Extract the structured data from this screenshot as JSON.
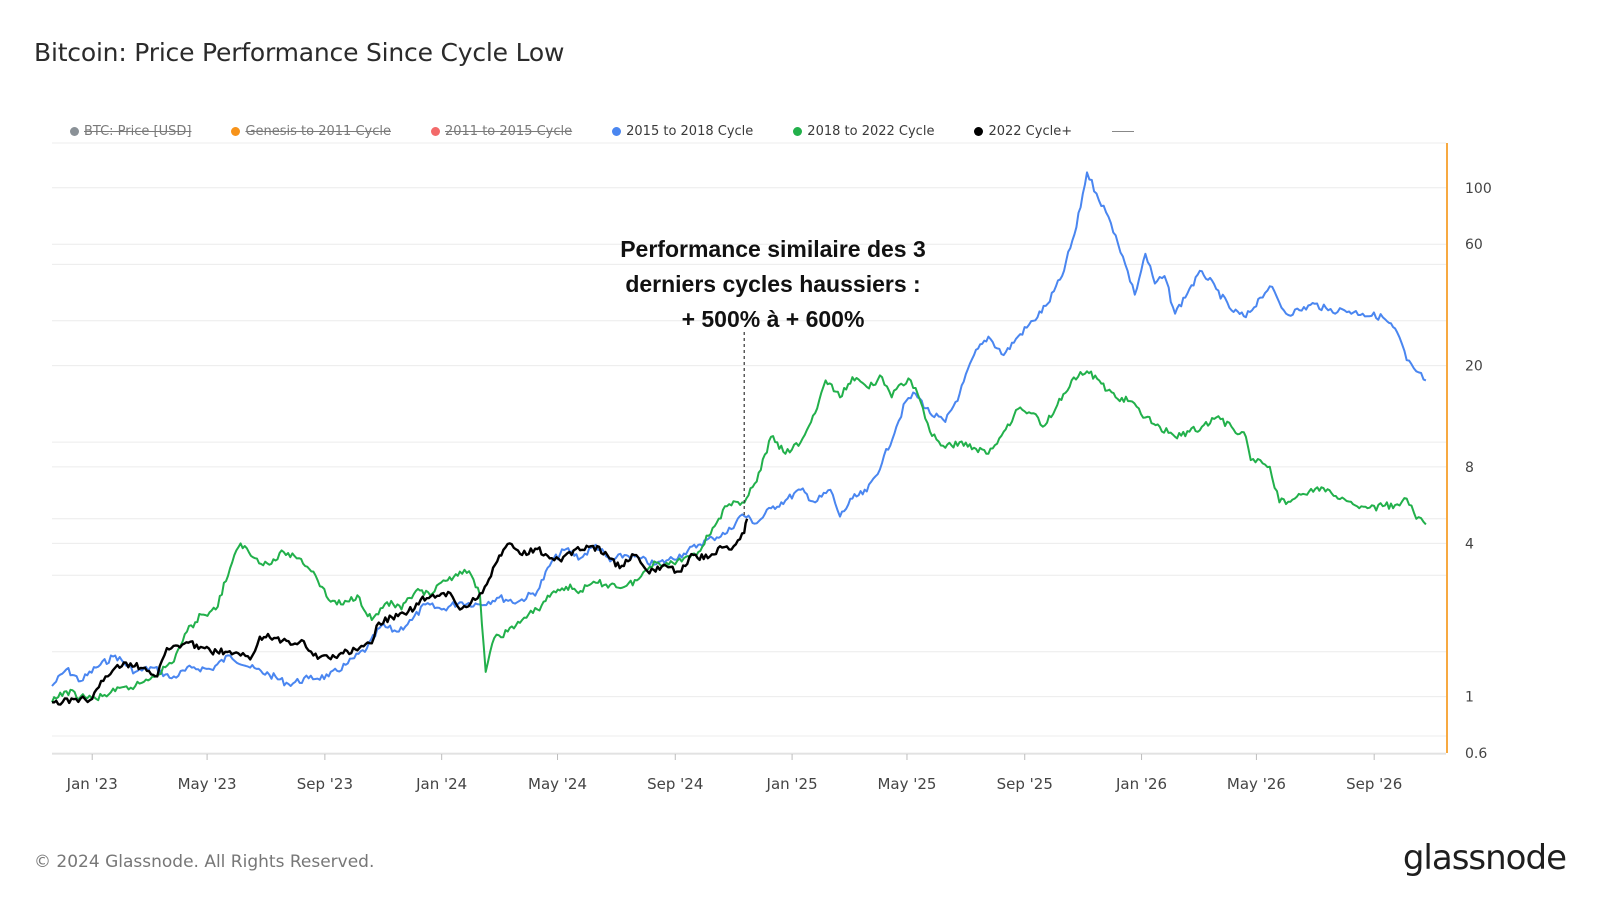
{
  "title": "Bitcoin: Price Performance Since Cycle Low",
  "footer": "© 2024 Glassnode. All Rights Reserved.",
  "brand": "glassnode",
  "legend": [
    {
      "label": "BTC: Price [USD]",
      "color": "#8a9197",
      "active": false
    },
    {
      "label": "Genesis to 2011 Cycle",
      "color": "#f7931a",
      "active": false
    },
    {
      "label": "2011 to 2015 Cycle",
      "color": "#f36a6a",
      "active": false
    },
    {
      "label": "2015 to 2018 Cycle",
      "color": "#4a86f0",
      "active": true
    },
    {
      "label": "2018 to 2022 Cycle",
      "color": "#22b04b",
      "active": true
    },
    {
      "label": "2022 Cycle+",
      "color": "#000000",
      "active": true
    }
  ],
  "annotation": {
    "lines": [
      "Performance similaire des 3",
      "derniers cycles haussiers :",
      "+ 500% à + 600%"
    ],
    "pointer_date": "Nov '24"
  },
  "chart_data": {
    "type": "line",
    "y_scale": "log",
    "y_ticks": [
      {
        "value": 0.6,
        "label": "0.6"
      },
      {
        "value": 1,
        "label": "1"
      },
      {
        "value": 4,
        "label": "4"
      },
      {
        "value": 8,
        "label": "8"
      },
      {
        "value": 20,
        "label": "20"
      },
      {
        "value": 60,
        "label": "60"
      },
      {
        "value": 100,
        "label": "100"
      }
    ],
    "y_gridlines": [
      0.6,
      0.7,
      1,
      1.5,
      3,
      4,
      5,
      8,
      10,
      20,
      30,
      50,
      60,
      100,
      150
    ],
    "ylim": [
      0.6,
      150
    ],
    "x_range": [
      "Nov 20 '22",
      "Nov 15 '26"
    ],
    "x_ticks": [
      "Jan '23",
      "May '23",
      "Sep '23",
      "Jan '24",
      "May '24",
      "Sep '24",
      "Jan '25",
      "May '25",
      "Sep '25",
      "Jan '26",
      "May '26",
      "Sep '26"
    ],
    "grid": "horizontal",
    "legend_position": "top-left",
    "series": [
      {
        "name": "2015 to 2018 Cycle",
        "color": "#4a86f0",
        "points": [
          [
            "Nov 20 '22",
            1.1
          ],
          [
            "Dec 05 '22",
            1.28
          ],
          [
            "Dec 20 '22",
            1.15
          ],
          [
            "Jan 05 '23",
            1.3
          ],
          [
            "Jan 25 '23",
            1.45
          ],
          [
            "Feb 15 '23",
            1.25
          ],
          [
            "Mar 05 '23",
            1.3
          ],
          [
            "Mar 25 '23",
            1.18
          ],
          [
            "Apr 15 '23",
            1.3
          ],
          [
            "May 05 '23",
            1.28
          ],
          [
            "May 25 '23",
            1.45
          ],
          [
            "Jun 15 '23",
            1.3
          ],
          [
            "Jul 05 '23",
            1.22
          ],
          [
            "Jul 25 '23",
            1.12
          ],
          [
            "Aug 15 '23",
            1.18
          ],
          [
            "Sep 05 '23",
            1.2
          ],
          [
            "Sep 25 '23",
            1.35
          ],
          [
            "Oct 15 '23",
            1.55
          ],
          [
            "Oct 30 '23",
            1.9
          ],
          [
            "Nov 15 '23",
            1.8
          ],
          [
            "Dec 01 '23",
            2.0
          ],
          [
            "Dec 15 '23",
            2.3
          ],
          [
            "Jan 01 '24",
            2.2
          ],
          [
            "Jan 20 '24",
            2.35
          ],
          [
            "Feb 10 '24",
            2.3
          ],
          [
            "Mar 01 '24",
            2.45
          ],
          [
            "Mar 20 '24",
            2.35
          ],
          [
            "Apr 10 '24",
            2.6
          ],
          [
            "Apr 25 '24",
            3.4
          ],
          [
            "May 10 '24",
            3.8
          ],
          [
            "May 25 '24",
            3.5
          ],
          [
            "Jun 10 '24",
            3.95
          ],
          [
            "Jun 25 '24",
            3.4
          ],
          [
            "Jul 10 '24",
            3.6
          ],
          [
            "Jul 25 '24",
            3.5
          ],
          [
            "Aug 10 '24",
            3.3
          ],
          [
            "Aug 25 '24",
            3.45
          ],
          [
            "Sep 10 '24",
            3.65
          ],
          [
            "Sep 25 '24",
            3.95
          ],
          [
            "Oct 10 '24",
            4.2
          ],
          [
            "Oct 25 '24",
            4.4
          ],
          [
            "Nov 10 '24",
            5.2
          ],
          [
            "Nov 25 '24",
            4.8
          ],
          [
            "Dec 10 '24",
            5.5
          ],
          [
            "Dec 25 '24",
            5.9
          ],
          [
            "Jan 10 '25",
            6.5
          ],
          [
            "Jan 25 '25",
            5.8
          ],
          [
            "Feb 10 '25",
            6.5
          ],
          [
            "Feb 20 '25",
            5.1
          ],
          [
            "Mar 05 '25",
            6.0
          ],
          [
            "Mar 20 '25",
            6.4
          ],
          [
            "Apr 05 '25",
            8.3
          ],
          [
            "Apr 20 '25",
            11.5
          ],
          [
            "Apr 30 '25",
            14.5
          ],
          [
            "May 10 '25",
            15.5
          ],
          [
            "May 25 '25",
            13.0
          ],
          [
            "Jun 10 '25",
            12.0
          ],
          [
            "Jun 25 '25",
            15.5
          ],
          [
            "Jul 10 '25",
            22.0
          ],
          [
            "Jul 25 '25",
            26.0
          ],
          [
            "Aug 10 '25",
            22.0
          ],
          [
            "Aug 25 '25",
            26.0
          ],
          [
            "Sep 10 '25",
            30.0
          ],
          [
            "Sep 25 '25",
            35.0
          ],
          [
            "Oct 10 '25",
            45.0
          ],
          [
            "Oct 25 '25",
            70.0
          ],
          [
            "Nov 05 '25",
            115.0
          ],
          [
            "Nov 15 '25",
            95.0
          ],
          [
            "Nov 25 '25",
            80.0
          ],
          [
            "Dec 05 '25",
            65.0
          ],
          [
            "Dec 15 '25",
            50.0
          ],
          [
            "Dec 25 '25",
            38.0
          ],
          [
            "Jan 05 '26",
            55.0
          ],
          [
            "Jan 15 '26",
            42.0
          ],
          [
            "Jan 25 '26",
            45.0
          ],
          [
            "Feb 05 '26",
            32.0
          ],
          [
            "Feb 20 '26",
            40.0
          ],
          [
            "Mar 05 '26",
            47.0
          ],
          [
            "Mar 20 '26",
            40.0
          ],
          [
            "Apr 05 '26",
            33.0
          ],
          [
            "Apr 20 '26",
            31.0
          ],
          [
            "May 05 '26",
            37.0
          ],
          [
            "May 15 '26",
            41.0
          ],
          [
            "Jun 01 '26",
            32.0
          ],
          [
            "Jun 15 '26",
            33.0
          ],
          [
            "Jul 01 '26",
            35.0
          ],
          [
            "Jul 15 '26",
            33.0
          ],
          [
            "Aug 01 '26",
            33.0
          ],
          [
            "Aug 20 '26",
            32.0
          ],
          [
            "Sep 10 '26",
            31.0
          ],
          [
            "Sep 25 '26",
            27.0
          ],
          [
            "Oct 05 '26",
            21.0
          ],
          [
            "Oct 15 '26",
            19.0
          ],
          [
            "Oct 25 '26",
            17.5
          ]
        ]
      },
      {
        "name": "2018 to 2022 Cycle",
        "color": "#22b04b",
        "points": [
          [
            "Nov 20 '22",
            0.95
          ],
          [
            "Dec 05 '22",
            1.05
          ],
          [
            "Dec 20 '22",
            1.0
          ],
          [
            "Jan 05 '23",
            0.98
          ],
          [
            "Jan 25 '23",
            1.05
          ],
          [
            "Feb 15 '23",
            1.1
          ],
          [
            "Mar 05 '23",
            1.2
          ],
          [
            "Mar 25 '23",
            1.35
          ],
          [
            "Apr 10 '23",
            1.8
          ],
          [
            "Apr 25 '23",
            2.1
          ],
          [
            "May 10 '23",
            2.2
          ],
          [
            "May 25 '23",
            3.2
          ],
          [
            "Jun 05 '23",
            4.0
          ],
          [
            "Jun 20 '23",
            3.5
          ],
          [
            "Jul 05 '23",
            3.3
          ],
          [
            "Jul 20 '23",
            3.7
          ],
          [
            "Aug 05 '23",
            3.5
          ],
          [
            "Aug 20 '23",
            3.1
          ],
          [
            "Sep 05 '23",
            2.4
          ],
          [
            "Sep 20 '23",
            2.3
          ],
          [
            "Oct 05 '23",
            2.5
          ],
          [
            "Oct 20 '23",
            2.0
          ],
          [
            "Nov 05 '23",
            2.35
          ],
          [
            "Nov 20 '23",
            2.2
          ],
          [
            "Dec 05 '23",
            2.6
          ],
          [
            "Dec 20 '23",
            2.5
          ],
          [
            "Jan 05 '24",
            2.85
          ],
          [
            "Jan 20 '24",
            3.1
          ],
          [
            "Feb 01 '24",
            3.0
          ],
          [
            "Feb 10 '24",
            2.5
          ],
          [
            "Feb 16 '24",
            1.25
          ],
          [
            "Feb 25 '24",
            1.7
          ],
          [
            "Mar 10 '24",
            1.8
          ],
          [
            "Mar 25 '24",
            2.0
          ],
          [
            "Apr 10 '24",
            2.2
          ],
          [
            "Apr 25 '24",
            2.55
          ],
          [
            "May 10 '24",
            2.7
          ],
          [
            "May 25 '24",
            2.6
          ],
          [
            "Jun 10 '24",
            2.8
          ],
          [
            "Jun 25 '24",
            2.75
          ],
          [
            "Jul 10 '24",
            2.7
          ],
          [
            "Jul 25 '24",
            2.9
          ],
          [
            "Aug 10 '24",
            3.4
          ],
          [
            "Aug 25 '24",
            3.3
          ],
          [
            "Sep 10 '24",
            3.5
          ],
          [
            "Sep 25 '24",
            3.7
          ],
          [
            "Oct 10 '24",
            4.6
          ],
          [
            "Oct 25 '24",
            5.6
          ],
          [
            "Nov 10 '24",
            5.8
          ],
          [
            "Nov 25 '24",
            7.0
          ],
          [
            "Dec 10 '24",
            10.5
          ],
          [
            "Dec 25 '24",
            9.0
          ],
          [
            "Jan 10 '25",
            10.0
          ],
          [
            "Jan 25 '25",
            13.0
          ],
          [
            "Feb 05 '25",
            17.5
          ],
          [
            "Feb 20 '25",
            15.0
          ],
          [
            "Mar 05 '25",
            18.0
          ],
          [
            "Mar 20 '25",
            16.5
          ],
          [
            "Apr 05 '25",
            18.0
          ],
          [
            "Apr 15 '25",
            15.0
          ],
          [
            "Apr 25 '25",
            17.0
          ],
          [
            "May 05 '25",
            17.5
          ],
          [
            "May 15 '25",
            14.5
          ],
          [
            "May 25 '25",
            11.0
          ],
          [
            "Jun 10 '25",
            9.5
          ],
          [
            "Jun 25 '25",
            10.0
          ],
          [
            "Jul 10 '25",
            9.5
          ],
          [
            "Jul 25 '25",
            9.0
          ],
          [
            "Aug 10 '25",
            11.0
          ],
          [
            "Aug 25 '25",
            13.5
          ],
          [
            "Sep 10 '25",
            13.0
          ],
          [
            "Sep 20 '25",
            11.5
          ],
          [
            "Oct 05 '25",
            14.0
          ],
          [
            "Oct 20 '25",
            17.5
          ],
          [
            "Nov 05 '25",
            19.0
          ],
          [
            "Nov 20 '25",
            17.0
          ],
          [
            "Dec 05 '25",
            15.0
          ],
          [
            "Dec 20 '25",
            14.5
          ],
          [
            "Jan 05 '26",
            12.5
          ],
          [
            "Jan 20 '26",
            11.5
          ],
          [
            "Feb 05 '26",
            10.5
          ],
          [
            "Feb 20 '26",
            11.0
          ],
          [
            "Mar 05 '26",
            11.5
          ],
          [
            "Mar 20 '26",
            12.5
          ],
          [
            "Apr 05 '26",
            11.5
          ],
          [
            "Apr 20 '26",
            10.5
          ],
          [
            "Apr 25 '26",
            8.5
          ],
          [
            "May 05 '26",
            8.5
          ],
          [
            "May 15 '26",
            8.0
          ],
          [
            "May 25 '26",
            5.8
          ],
          [
            "Jun 10 '26",
            6.0
          ],
          [
            "Jun 25 '26",
            6.4
          ],
          [
            "Jul 10 '26",
            6.6
          ],
          [
            "Jul 25 '26",
            6.0
          ],
          [
            "Aug 10 '26",
            5.7
          ],
          [
            "Aug 25 '26",
            5.5
          ],
          [
            "Sep 10 '26",
            5.6
          ],
          [
            "Sep 25 '26",
            5.7
          ],
          [
            "Oct 05 '26",
            6.0
          ],
          [
            "Oct 15 '26",
            5.0
          ],
          [
            "Oct 25 '26",
            4.75
          ]
        ]
      },
      {
        "name": "2022 Cycle+",
        "color": "#000000",
        "points": [
          [
            "Nov 20 '22",
            0.95
          ],
          [
            "Dec 01 '22",
            0.95
          ],
          [
            "Dec 15 '22",
            0.98
          ],
          [
            "Jan 01 '23",
            0.98
          ],
          [
            "Jan 15 '23",
            1.2
          ],
          [
            "Jan 25 '23",
            1.3
          ],
          [
            "Feb 10 '23",
            1.35
          ],
          [
            "Feb 25 '23",
            1.3
          ],
          [
            "Mar 10 '23",
            1.2
          ],
          [
            "Mar 20 '23",
            1.55
          ],
          [
            "Apr 05 '23",
            1.6
          ],
          [
            "Apr 20 '23",
            1.6
          ],
          [
            "May 05 '23",
            1.5
          ],
          [
            "May 20 '23",
            1.5
          ],
          [
            "Jun 05 '23",
            1.45
          ],
          [
            "Jun 15 '23",
            1.4
          ],
          [
            "Jun 25 '23",
            1.72
          ],
          [
            "Jul 10 '23",
            1.7
          ],
          [
            "Jul 25 '23",
            1.65
          ],
          [
            "Aug 10 '23",
            1.65
          ],
          [
            "Aug 20 '23",
            1.45
          ],
          [
            "Sep 05 '23",
            1.42
          ],
          [
            "Sep 20 '23",
            1.48
          ],
          [
            "Oct 05 '23",
            1.52
          ],
          [
            "Oct 20 '23",
            1.62
          ],
          [
            "Oct 25 '23",
            1.9
          ],
          [
            "Nov 10 '23",
            2.05
          ],
          [
            "Nov 25 '23",
            2.1
          ],
          [
            "Dec 10 '23",
            2.4
          ],
          [
            "Dec 25 '23",
            2.45
          ],
          [
            "Jan 10 '24",
            2.55
          ],
          [
            "Jan 20 '24",
            2.2
          ],
          [
            "Feb 05 '24",
            2.4
          ],
          [
            "Feb 15 '24",
            2.7
          ],
          [
            "Feb 28 '24",
            3.4
          ],
          [
            "Mar 12 '24",
            4.0
          ],
          [
            "Mar 25 '24",
            3.6
          ],
          [
            "Apr 10 '24",
            3.8
          ],
          [
            "Apr 25 '24",
            3.5
          ],
          [
            "May 05 '24",
            3.4
          ],
          [
            "May 20 '24",
            3.8
          ],
          [
            "Jun 05 '24",
            3.9
          ],
          [
            "Jun 20 '24",
            3.7
          ],
          [
            "Jul 05 '24",
            3.2
          ],
          [
            "Jul 20 '24",
            3.6
          ],
          [
            "Aug 05 '24",
            3.05
          ],
          [
            "Aug 20 '24",
            3.3
          ],
          [
            "Sep 05 '24",
            3.1
          ],
          [
            "Sep 20 '24",
            3.6
          ],
          [
            "Oct 05 '24",
            3.5
          ],
          [
            "Oct 20 '24",
            3.85
          ],
          [
            "Nov 01 '24",
            3.9
          ],
          [
            "Nov 12 '24",
            4.4
          ],
          [
            "Nov 15 '24",
            5.0
          ]
        ]
      }
    ]
  }
}
